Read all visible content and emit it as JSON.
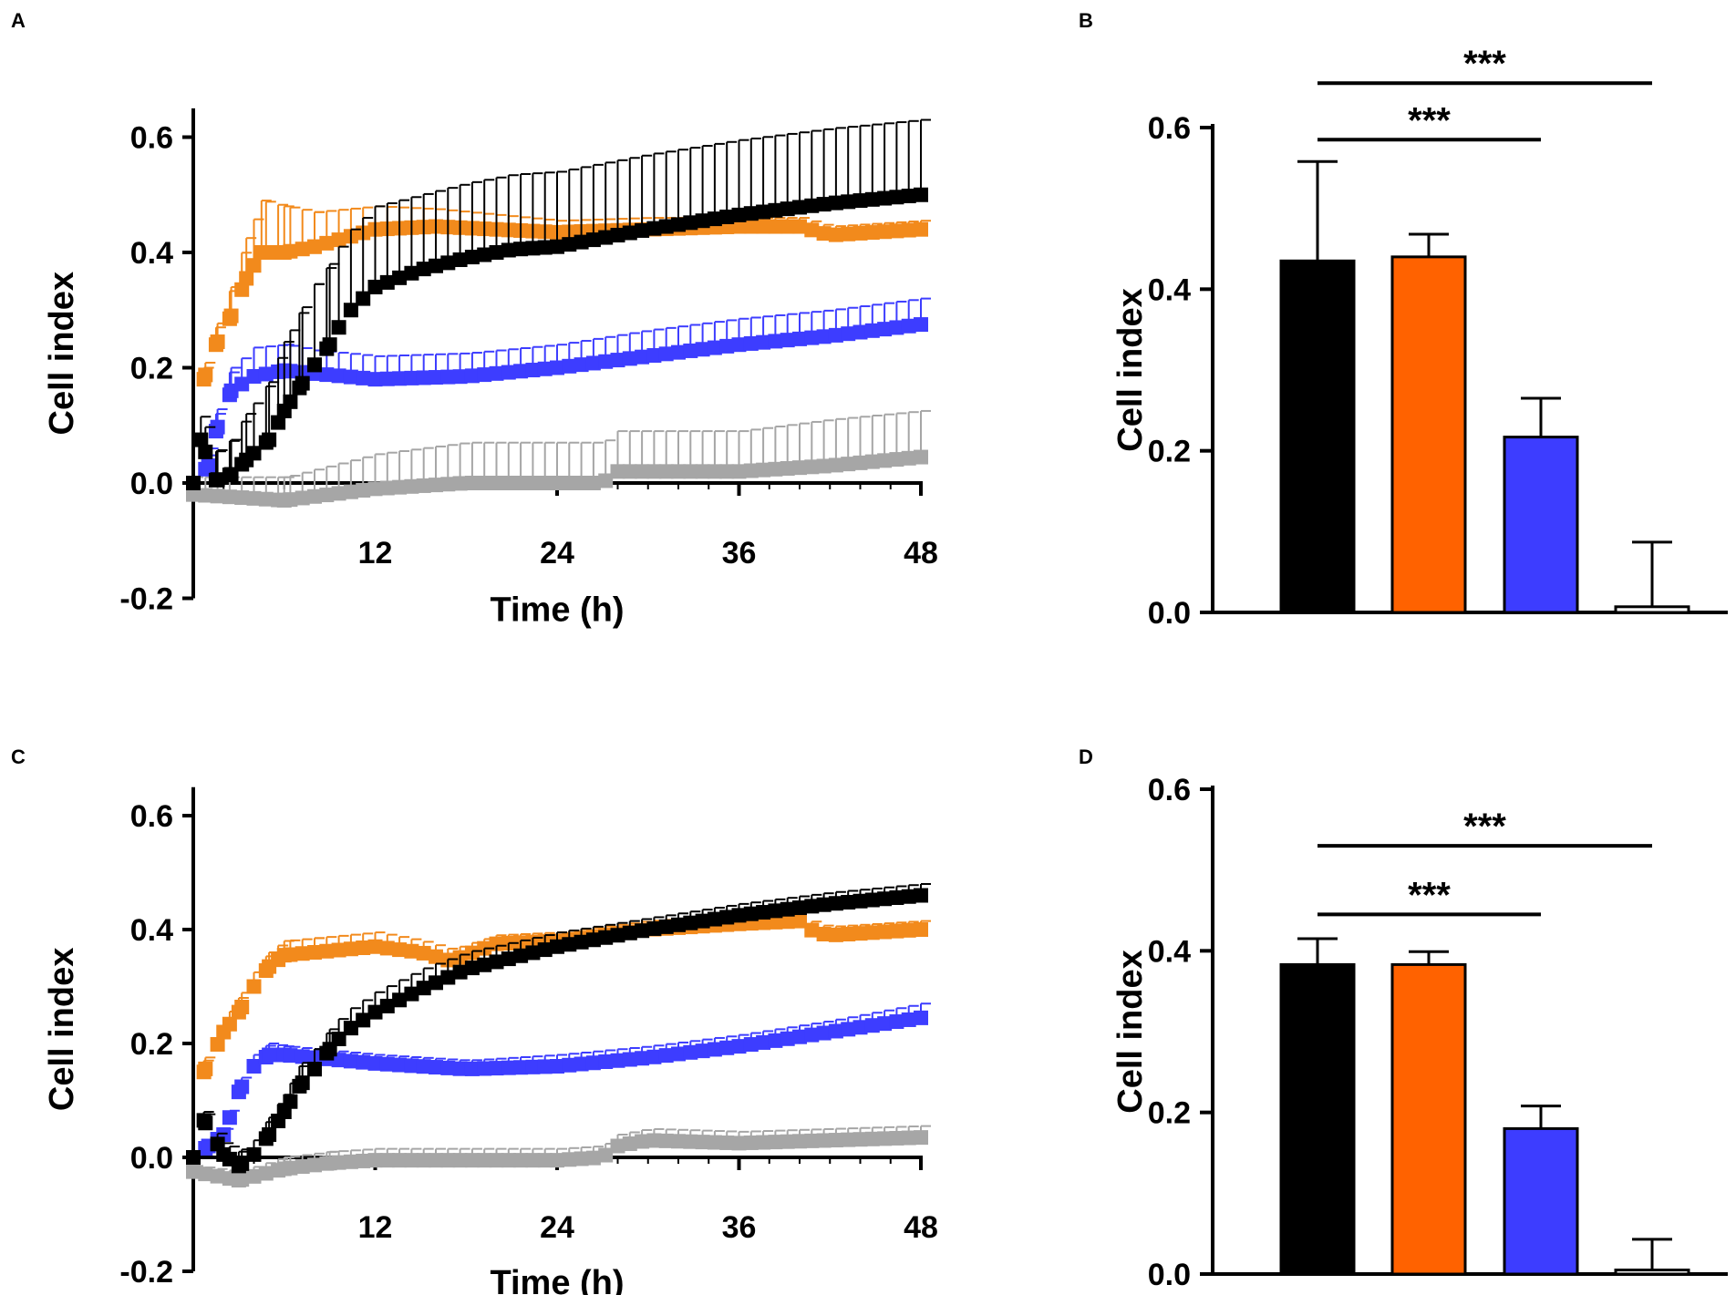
{
  "figure": {
    "panels": {
      "A": {
        "label": "A"
      },
      "B": {
        "label": "B"
      },
      "C": {
        "label": "C"
      },
      "D": {
        "label": "D"
      }
    }
  },
  "chart_data": [
    {
      "panel": "A",
      "type": "scatter",
      "xlabel": "Time (h)",
      "ylabel": "Cell index",
      "xlim": [
        0,
        48
      ],
      "ylim": [
        -0.2,
        0.65
      ],
      "xticks": [
        12,
        24,
        36,
        48
      ],
      "yticks": [
        -0.2,
        0.0,
        0.2,
        0.4,
        0.6
      ],
      "ytick_labels": [
        "-0.2",
        "0.0",
        "0.2",
        "0.4",
        "0.6"
      ],
      "series": [
        {
          "name": "gray",
          "color": "#a6a6a6",
          "x": [
            0,
            6,
            12,
            18,
            24,
            27,
            28,
            30,
            36,
            42,
            48
          ],
          "y": [
            -0.02,
            -0.03,
            -0.01,
            0.0,
            0.0,
            0.0,
            0.02,
            0.02,
            0.02,
            0.03,
            0.045
          ],
          "err": [
            0.03,
            0.04,
            0.06,
            0.07,
            0.07,
            0.07,
            0.07,
            0.07,
            0.07,
            0.08,
            0.08
          ]
        },
        {
          "name": "blue",
          "color": "#3d3dff",
          "x": [
            0,
            1,
            1.5,
            2.5,
            4,
            6,
            8,
            12,
            18,
            24,
            30,
            36,
            42,
            48
          ],
          "y": [
            0,
            0.03,
            0.09,
            0.16,
            0.185,
            0.195,
            0.19,
            0.18,
            0.185,
            0.2,
            0.22,
            0.24,
            0.255,
            0.275
          ],
          "err": [
            0,
            0.03,
            0.03,
            0.04,
            0.05,
            0.045,
            0.04,
            0.04,
            0.04,
            0.04,
            0.045,
            0.045,
            0.045,
            0.045
          ]
        },
        {
          "name": "orange",
          "color": "#f28a1c",
          "x": [
            0,
            0.7,
            1.5,
            2.5,
            3.5,
            4.5,
            6,
            8,
            12,
            16,
            20,
            24,
            30,
            36,
            40,
            42,
            48
          ],
          "y": [
            0,
            0.18,
            0.24,
            0.29,
            0.355,
            0.4,
            0.4,
            0.41,
            0.44,
            0.445,
            0.44,
            0.435,
            0.44,
            0.445,
            0.445,
            0.43,
            0.44
          ],
          "err": [
            0,
            0.02,
            0.03,
            0.05,
            0.07,
            0.09,
            0.08,
            0.06,
            0.04,
            0.03,
            0.025,
            0.02,
            0.02,
            0.015,
            0.015,
            0.015,
            0.015
          ]
        },
        {
          "name": "black",
          "color": "#000000",
          "x": [
            0,
            0.5,
            1.5,
            2.5,
            3.5,
            5,
            6,
            7,
            8,
            9,
            10,
            11,
            12,
            15,
            18,
            21,
            24,
            30,
            36,
            42,
            48
          ],
          "y": [
            0,
            0.075,
            0.005,
            0.015,
            0.04,
            0.075,
            0.125,
            0.165,
            0.205,
            0.24,
            0.29,
            0.315,
            0.34,
            0.37,
            0.39,
            0.405,
            0.41,
            0.44,
            0.465,
            0.485,
            0.5
          ],
          "err": [
            0,
            0.04,
            0.05,
            0.06,
            0.08,
            0.1,
            0.12,
            0.13,
            0.14,
            0.14,
            0.14,
            0.14,
            0.14,
            0.13,
            0.13,
            0.13,
            0.13,
            0.13,
            0.13,
            0.13,
            0.13
          ]
        }
      ]
    },
    {
      "panel": "B",
      "type": "bar",
      "ylabel": "Cell index",
      "ylim": [
        0,
        0.6
      ],
      "yticks": [
        0.0,
        0.2,
        0.4,
        0.6
      ],
      "ytick_labels": [
        "0.0",
        "0.2",
        "0.4",
        "0.6"
      ],
      "categories": [
        "black",
        "orange",
        "blue",
        "gray"
      ],
      "colors": [
        "#000000",
        "#ff6200",
        "#3d3dff",
        "#a6a6a6"
      ],
      "values": [
        0.435,
        0.44,
        0.217,
        0.007
      ],
      "errors": [
        0.123,
        0.028,
        0.048,
        0.08
      ],
      "significance": [
        {
          "from": 0,
          "to": 2,
          "label": "***",
          "level": 0.585
        },
        {
          "from": 0,
          "to": 3,
          "label": "***",
          "level": 0.655
        }
      ]
    },
    {
      "panel": "C",
      "type": "scatter",
      "xlabel": "Time (h)",
      "ylabel": "Cell index",
      "xlim": [
        0,
        48
      ],
      "ylim": [
        -0.2,
        0.65
      ],
      "xticks": [
        12,
        24,
        36,
        48
      ],
      "yticks": [
        -0.2,
        0.0,
        0.2,
        0.4,
        0.6
      ],
      "ytick_labels": [
        "-0.2",
        "0.0",
        "0.2",
        "0.4",
        "0.6"
      ],
      "series": [
        {
          "name": "gray",
          "color": "#a6a6a6",
          "x": [
            0,
            3,
            6,
            9,
            12,
            18,
            24,
            27,
            28,
            30,
            36,
            42,
            48
          ],
          "y": [
            -0.025,
            -0.04,
            -0.02,
            -0.01,
            -0.005,
            -0.005,
            -0.005,
            0.0,
            0.02,
            0.03,
            0.025,
            0.03,
            0.035
          ],
          "err": [
            0.01,
            0.015,
            0.02,
            0.02,
            0.02,
            0.02,
            0.02,
            0.02,
            0.02,
            0.02,
            0.02,
            0.02,
            0.02
          ]
        },
        {
          "name": "blue",
          "color": "#3d3dff",
          "x": [
            0,
            1,
            2,
            3,
            4,
            5,
            6,
            8,
            12,
            18,
            24,
            30,
            36,
            42,
            48
          ],
          "y": [
            0,
            0.02,
            0.04,
            0.115,
            0.16,
            0.18,
            0.18,
            0.175,
            0.165,
            0.155,
            0.16,
            0.175,
            0.195,
            0.22,
            0.245
          ],
          "err": [
            0,
            0.01,
            0.01,
            0.015,
            0.02,
            0.02,
            0.015,
            0.015,
            0.015,
            0.015,
            0.02,
            0.02,
            0.02,
            0.02,
            0.025
          ]
        },
        {
          "name": "orange",
          "color": "#f28a1c",
          "x": [
            0,
            0.7,
            2,
            3,
            4,
            5,
            6,
            8,
            12,
            15,
            17,
            20,
            24,
            30,
            36,
            40,
            41,
            42,
            48
          ],
          "y": [
            0,
            0.15,
            0.22,
            0.255,
            0.3,
            0.335,
            0.355,
            0.36,
            0.37,
            0.36,
            0.345,
            0.375,
            0.38,
            0.4,
            0.41,
            0.415,
            0.395,
            0.39,
            0.4
          ],
          "err": [
            0,
            0.02,
            0.02,
            0.025,
            0.025,
            0.025,
            0.025,
            0.025,
            0.025,
            0.02,
            0.02,
            0.015,
            0.015,
            0.015,
            0.015,
            0.015,
            0.015,
            0.015,
            0.015
          ]
        },
        {
          "name": "black",
          "color": "#000000",
          "x": [
            0,
            0.7,
            2,
            3,
            4,
            5,
            6,
            7,
            8,
            9,
            10,
            12,
            15,
            18,
            24,
            30,
            36,
            42,
            48
          ],
          "y": [
            0,
            0.065,
            0.005,
            -0.015,
            0.005,
            0.04,
            0.08,
            0.125,
            0.155,
            0.19,
            0.22,
            0.255,
            0.295,
            0.33,
            0.37,
            0.4,
            0.425,
            0.445,
            0.46
          ],
          "err": [
            0,
            0.015,
            0.02,
            0.025,
            0.025,
            0.03,
            0.03,
            0.035,
            0.035,
            0.035,
            0.035,
            0.035,
            0.035,
            0.03,
            0.025,
            0.02,
            0.02,
            0.02,
            0.02
          ]
        }
      ]
    },
    {
      "panel": "D",
      "type": "bar",
      "ylabel": "Cell index",
      "ylim": [
        0,
        0.6
      ],
      "yticks": [
        0.0,
        0.2,
        0.4,
        0.6
      ],
      "ytick_labels": [
        "0.0",
        "0.2",
        "0.4",
        "0.6"
      ],
      "categories": [
        "black",
        "orange",
        "blue",
        "gray"
      ],
      "colors": [
        "#000000",
        "#ff6200",
        "#3d3dff",
        "#a6a6a6"
      ],
      "values": [
        0.383,
        0.383,
        0.18,
        0.005
      ],
      "errors": [
        0.032,
        0.016,
        0.028,
        0.038
      ],
      "significance": [
        {
          "from": 0,
          "to": 2,
          "label": "***",
          "level": 0.445
        },
        {
          "from": 0,
          "to": 3,
          "label": "***",
          "level": 0.53
        }
      ]
    }
  ]
}
